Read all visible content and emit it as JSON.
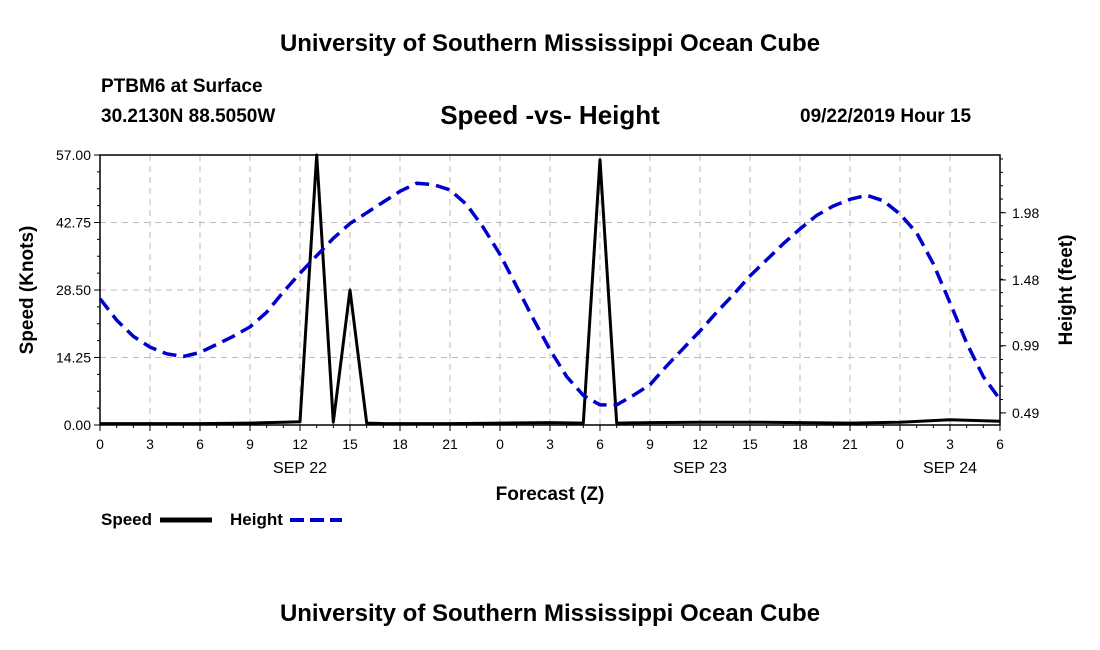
{
  "header": {
    "title_top": "University of Southern Mississippi Ocean Cube",
    "station": "PTBM6 at Surface",
    "coords": "30.2130N 88.5050W",
    "subtitle": "Speed -vs- Height",
    "datetime": "09/22/2019 Hour 15",
    "title_bottom": "University of Southern Mississippi Ocean Cube"
  },
  "chart_data": {
    "type": "line",
    "title": "Speed -vs- Height",
    "xlabel": "Forecast (Z)",
    "ylabel_left": "Speed (Knots)",
    "ylabel_right": "Height (feet)",
    "x_range_hours": [
      0,
      54
    ],
    "y_left_range": [
      0,
      57
    ],
    "y_right_range": [
      0.4,
      2.41
    ],
    "x_tick_labels": [
      "0",
      "3",
      "6",
      "9",
      "12",
      "15",
      "18",
      "21",
      "0",
      "3",
      "6",
      "9",
      "12",
      "15",
      "18",
      "21",
      "0",
      "3",
      "6"
    ],
    "date_labels": [
      {
        "label": "SEP 22",
        "hour": 12
      },
      {
        "label": "SEP 23",
        "hour": 36
      },
      {
        "label": "SEP 24",
        "hour": 51
      }
    ],
    "y_left_ticks": [
      "0.00",
      "14.25",
      "28.50",
      "42.75",
      "57.00"
    ],
    "y_right_ticks": [
      "0.49",
      "0.99",
      "1.48",
      "1.98"
    ],
    "y_right_tick_values": [
      0.49,
      0.99,
      1.48,
      1.98
    ],
    "grid": true,
    "legend_position": "bottom-left",
    "series": [
      {
        "name": "Speed",
        "axis": "left",
        "color": "#000000",
        "style": "solid",
        "x": [
          0,
          3,
          6,
          9,
          10,
          11,
          12,
          13,
          14,
          15,
          16,
          17,
          18,
          21,
          24,
          27,
          29,
          30,
          31,
          33,
          36,
          39,
          42,
          45,
          48,
          51,
          54
        ],
        "values": [
          0.3,
          0.3,
          0.3,
          0.4,
          0.5,
          0.6,
          0.7,
          57,
          0.6,
          28.5,
          0.4,
          0.3,
          0.3,
          0.3,
          0.4,
          0.5,
          0.4,
          56,
          0.4,
          0.5,
          0.6,
          0.6,
          0.5,
          0.4,
          0.6,
          1.1,
          0.8
        ]
      },
      {
        "name": "Height",
        "axis": "right",
        "color": "#0000cc",
        "style": "dashed",
        "x": [
          0,
          1,
          2,
          3,
          4,
          5,
          6,
          7,
          8,
          9,
          10,
          11,
          12,
          13,
          14,
          15,
          16,
          17,
          18,
          19,
          20,
          21,
          22,
          23,
          24,
          25,
          26,
          27,
          28,
          29,
          30,
          31,
          32,
          33,
          34,
          35,
          36,
          37,
          38,
          39,
          40,
          41,
          42,
          43,
          44,
          45,
          46,
          47,
          48,
          49,
          50,
          51,
          52,
          53,
          54
        ],
        "values": [
          1.34,
          1.18,
          1.06,
          0.98,
          0.93,
          0.91,
          0.94,
          1.0,
          1.06,
          1.13,
          1.24,
          1.39,
          1.53,
          1.66,
          1.79,
          1.9,
          1.98,
          2.06,
          2.14,
          2.2,
          2.19,
          2.15,
          2.04,
          1.87,
          1.67,
          1.43,
          1.19,
          0.96,
          0.76,
          0.62,
          0.55,
          0.55,
          0.62,
          0.7,
          0.84,
          0.97,
          1.1,
          1.24,
          1.37,
          1.51,
          1.63,
          1.75,
          1.86,
          1.96,
          2.03,
          2.08,
          2.11,
          2.07,
          1.97,
          1.83,
          1.6,
          1.31,
          1.01,
          0.76,
          0.59
        ]
      }
    ]
  },
  "legend": {
    "speed_label": "Speed",
    "height_label": "Height"
  },
  "colors": {
    "speed": "#000000",
    "height": "#0000cc",
    "grid": "#bbbbbb"
  }
}
